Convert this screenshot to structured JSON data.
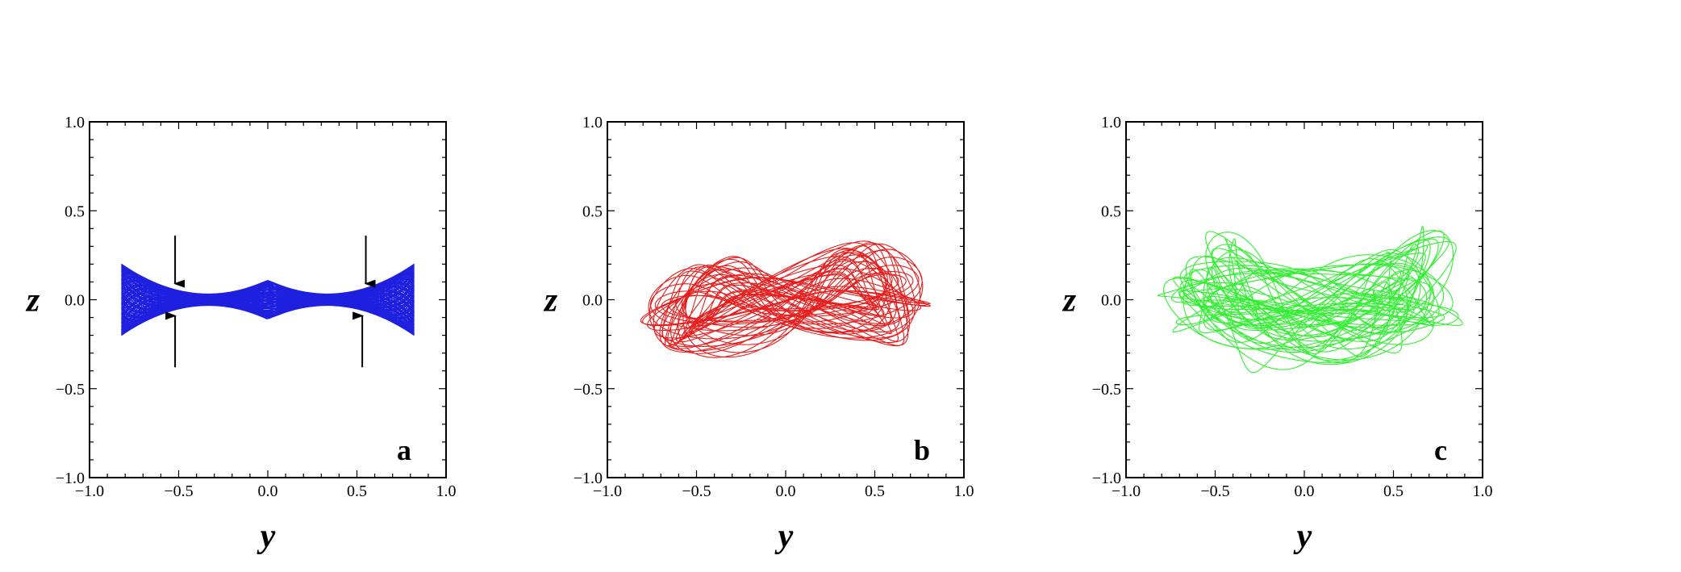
{
  "chart_data": [
    {
      "type": "line",
      "panel_label": "a",
      "xlabel": "y",
      "ylabel": "z",
      "xlim": [
        -1.0,
        1.0
      ],
      "ylim": [
        -1.0,
        1.0
      ],
      "xticks": [
        "−1.0",
        "−0.5",
        "0.0",
        "0.5",
        "1.0"
      ],
      "yticks": [
        "1.0",
        "0.5",
        "0.0",
        "−0.5",
        "−1.0"
      ],
      "grid": false,
      "color": "#1f1fe0",
      "orbit": {
        "kind": "box",
        "y_extent": [
          -0.82,
          0.82
        ],
        "z_extent": [
          -0.2,
          0.2
        ],
        "edge_half_height": 0.2,
        "waist_half_height": 0.06,
        "center_half_height": 0.11
      },
      "annotations": [
        {
          "type": "arrow",
          "x": -0.52,
          "from_z": 0.36,
          "to_z": 0.09
        },
        {
          "type": "arrow",
          "x": 0.55,
          "from_z": 0.36,
          "to_z": 0.09
        },
        {
          "type": "arrow",
          "x": -0.52,
          "from_z": -0.38,
          "to_z": -0.09
        },
        {
          "type": "arrow",
          "x": 0.53,
          "from_z": -0.38,
          "to_z": -0.09
        }
      ]
    },
    {
      "type": "line",
      "panel_label": "b",
      "xlabel": "y",
      "ylabel": "z",
      "xlim": [
        -1.0,
        1.0
      ],
      "ylim": [
        -1.0,
        1.0
      ],
      "xticks": [
        "−1.0",
        "−0.5",
        "0.0",
        "0.5",
        "1.0"
      ],
      "yticks": [
        "1.0",
        "0.5",
        "0.0",
        "−0.5",
        "−1.0"
      ],
      "grid": false,
      "color": "#e81e1e",
      "orbit": {
        "kind": "figure-eight",
        "y_extent": [
          -0.85,
          0.85
        ],
        "z_extent": [
          -0.31,
          0.31
        ]
      }
    },
    {
      "type": "line",
      "panel_label": "c",
      "xlabel": "y",
      "ylabel": "z",
      "xlim": [
        -1.0,
        1.0
      ],
      "ylim": [
        -1.0,
        1.0
      ],
      "xticks": [
        "−1.0",
        "−0.5",
        "0.0",
        "0.5",
        "1.0"
      ],
      "yticks": [
        "1.0",
        "0.5",
        "0.0",
        "−0.5",
        "−1.0"
      ],
      "grid": false,
      "color": "#33ee33",
      "orbit": {
        "kind": "chaotic",
        "y_extent": [
          -0.8,
          0.85
        ],
        "z_extent": [
          -0.35,
          0.35
        ]
      }
    }
  ]
}
